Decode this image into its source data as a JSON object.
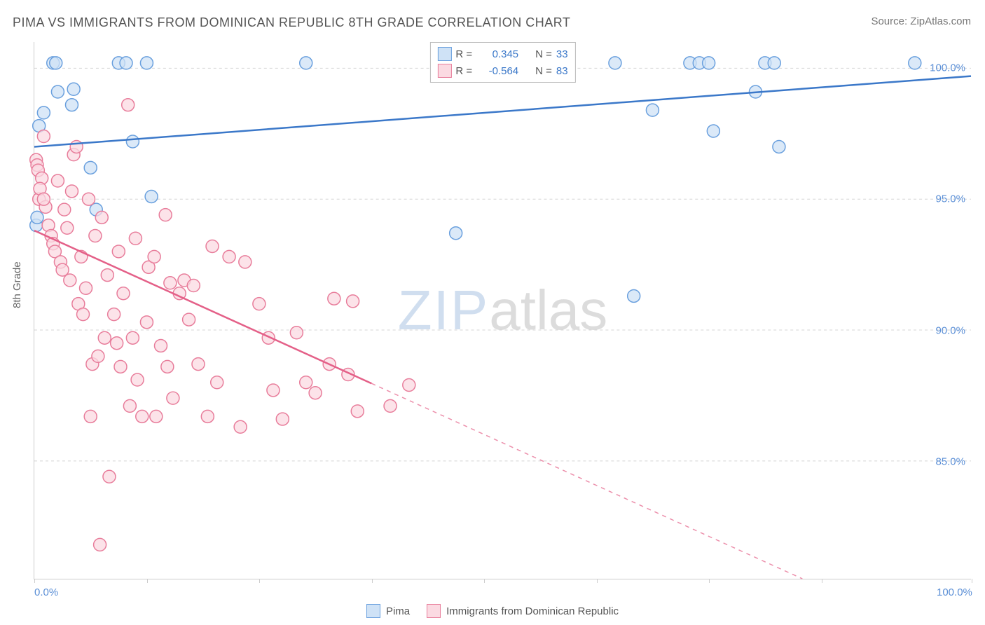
{
  "title": "PIMA VS IMMIGRANTS FROM DOMINICAN REPUBLIC 8TH GRADE CORRELATION CHART",
  "source": "Source: ZipAtlas.com",
  "y_axis_label": "8th Grade",
  "watermark": {
    "left": "ZIP",
    "right": "atlas"
  },
  "chart": {
    "type": "scatter",
    "background_color": "#ffffff",
    "grid_color": "#d5d5d5",
    "axis_color": "#cccccc",
    "x_range": [
      0,
      100
    ],
    "y_range": [
      80.5,
      101
    ],
    "x_ticks": [
      0,
      12,
      24,
      36,
      48,
      60,
      72,
      84,
      100
    ],
    "x_tick_labels": {
      "0": "0.0%",
      "100": "100.0%"
    },
    "y_gridlines": [
      85,
      90,
      95,
      100
    ],
    "y_tick_labels": {
      "85": "85.0%",
      "90": "90.0%",
      "95": "95.0%",
      "100": "100.0%"
    },
    "marker_radius": 9,
    "marker_stroke_width": 1.5,
    "trend_line_width": 2.5,
    "series": [
      {
        "id": "pima",
        "label": "Pima",
        "R": "0.345",
        "N": "33",
        "fill": "#cfe2f6",
        "stroke": "#6aa0de",
        "line_color": "#3b78c9",
        "trend": {
          "x1": 0,
          "y1": 97.0,
          "x2": 100,
          "y2": 99.7,
          "dashed_from_x": null
        },
        "points": [
          [
            0.2,
            94.0
          ],
          [
            0.3,
            94.3
          ],
          [
            1.0,
            98.3
          ],
          [
            2.0,
            100.2
          ],
          [
            2.3,
            100.2
          ],
          [
            2.5,
            99.1
          ],
          [
            4.0,
            98.6
          ],
          [
            4.2,
            99.2
          ],
          [
            6.0,
            96.2
          ],
          [
            6.6,
            94.6
          ],
          [
            0.5,
            97.8
          ],
          [
            9.0,
            100.2
          ],
          [
            9.8,
            100.2
          ],
          [
            10.5,
            97.2
          ],
          [
            12.0,
            100.2
          ],
          [
            12.5,
            95.1
          ],
          [
            29.0,
            100.2
          ],
          [
            45.0,
            93.7
          ],
          [
            62.0,
            100.2
          ],
          [
            64.0,
            91.3
          ],
          [
            66.0,
            98.4
          ],
          [
            70.0,
            100.2
          ],
          [
            71.0,
            100.2
          ],
          [
            72.0,
            100.2
          ],
          [
            72.5,
            97.6
          ],
          [
            77.0,
            99.1
          ],
          [
            78.0,
            100.2
          ],
          [
            79.0,
            100.2
          ],
          [
            79.5,
            97.0
          ],
          [
            94.0,
            100.2
          ]
        ]
      },
      {
        "id": "dominican",
        "label": "Immigrants from Dominican Republic",
        "R": "-0.564",
        "N": "83",
        "fill": "#fbdae2",
        "stroke": "#e87d9b",
        "line_color": "#e46088",
        "trend": {
          "x1": 0,
          "y1": 93.8,
          "x2": 82,
          "y2": 80.5,
          "dashed_from_x": 36
        },
        "points": [
          [
            0.2,
            96.5
          ],
          [
            0.3,
            96.3
          ],
          [
            0.4,
            96.1
          ],
          [
            0.8,
            95.8
          ],
          [
            0.5,
            95.0
          ],
          [
            0.6,
            95.4
          ],
          [
            1.0,
            97.4
          ],
          [
            1.2,
            94.7
          ],
          [
            1.5,
            94.0
          ],
          [
            1.8,
            93.6
          ],
          [
            2.0,
            93.3
          ],
          [
            2.2,
            93.0
          ],
          [
            1.0,
            95.0
          ],
          [
            2.5,
            95.7
          ],
          [
            2.8,
            92.6
          ],
          [
            3.0,
            92.3
          ],
          [
            3.2,
            94.6
          ],
          [
            3.5,
            93.9
          ],
          [
            3.8,
            91.9
          ],
          [
            4.0,
            95.3
          ],
          [
            4.2,
            96.7
          ],
          [
            4.5,
            97.0
          ],
          [
            4.7,
            91.0
          ],
          [
            5.0,
            92.8
          ],
          [
            5.2,
            90.6
          ],
          [
            5.5,
            91.6
          ],
          [
            5.8,
            95.0
          ],
          [
            6.0,
            86.7
          ],
          [
            6.2,
            88.7
          ],
          [
            6.5,
            93.6
          ],
          [
            6.8,
            89.0
          ],
          [
            7.0,
            81.8
          ],
          [
            7.2,
            94.3
          ],
          [
            7.5,
            89.7
          ],
          [
            7.8,
            92.1
          ],
          [
            8.0,
            84.4
          ],
          [
            8.5,
            90.6
          ],
          [
            8.8,
            89.5
          ],
          [
            9.0,
            93.0
          ],
          [
            9.2,
            88.6
          ],
          [
            9.5,
            91.4
          ],
          [
            10.0,
            98.6
          ],
          [
            10.2,
            87.1
          ],
          [
            10.5,
            89.7
          ],
          [
            10.8,
            93.5
          ],
          [
            11.0,
            88.1
          ],
          [
            11.5,
            86.7
          ],
          [
            12.0,
            90.3
          ],
          [
            12.2,
            92.4
          ],
          [
            12.8,
            92.8
          ],
          [
            13.0,
            86.7
          ],
          [
            13.5,
            89.4
          ],
          [
            14.0,
            94.4
          ],
          [
            14.2,
            88.6
          ],
          [
            14.8,
            87.4
          ],
          [
            14.5,
            91.8
          ],
          [
            15.5,
            91.4
          ],
          [
            16.0,
            91.9
          ],
          [
            16.5,
            90.4
          ],
          [
            17.0,
            91.7
          ],
          [
            17.5,
            88.7
          ],
          [
            18.5,
            86.7
          ],
          [
            19.0,
            93.2
          ],
          [
            19.5,
            88.0
          ],
          [
            20.8,
            92.8
          ],
          [
            22.0,
            86.3
          ],
          [
            22.5,
            92.6
          ],
          [
            24.0,
            91.0
          ],
          [
            25.0,
            89.7
          ],
          [
            25.5,
            87.7
          ],
          [
            26.5,
            86.6
          ],
          [
            28.0,
            89.9
          ],
          [
            29.0,
            88.0
          ],
          [
            30.0,
            87.6
          ],
          [
            31.5,
            88.7
          ],
          [
            32.0,
            91.2
          ],
          [
            33.5,
            88.3
          ],
          [
            34.0,
            91.1
          ],
          [
            34.5,
            86.9
          ],
          [
            38.0,
            87.1
          ],
          [
            40.0,
            87.9
          ]
        ]
      }
    ]
  },
  "legend_top": {
    "r_label": "R =",
    "n_label": "N =",
    "value_color": "#3b78c9",
    "label_color": "#555555"
  },
  "legend_bottom": {
    "label_color": "#555555"
  }
}
